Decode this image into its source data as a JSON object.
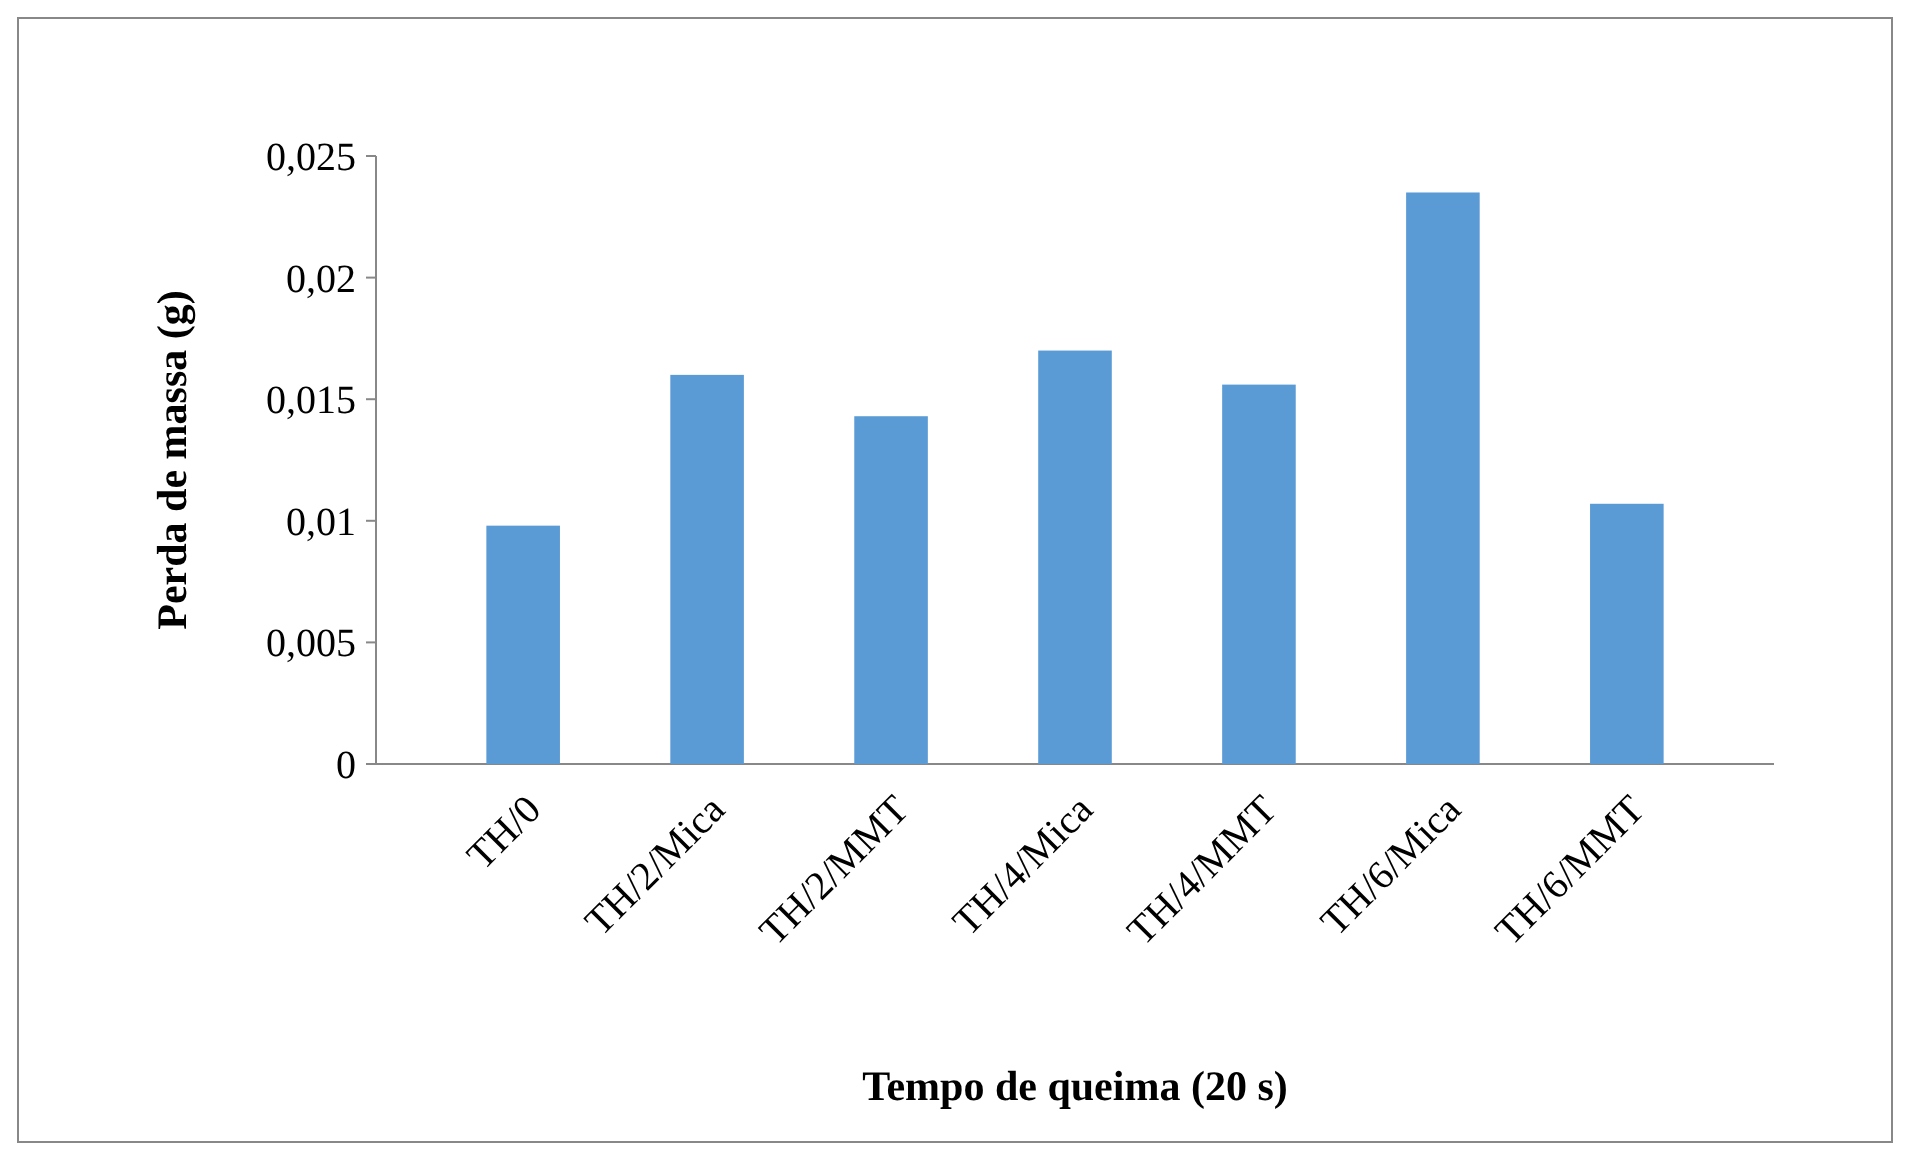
{
  "chart_data": {
    "type": "bar",
    "xlabel": "Tempo de queima (20 s)",
    "ylabel": "Perda de massa (g)",
    "categories": [
      "TH/0",
      "TH/2/Mica",
      "TH/2/MMT",
      "TH/4/Mica",
      "TH/4/MMT",
      "TH/6/Mica",
      "TH/6/MMT"
    ],
    "values": [
      0.0098,
      0.016,
      0.0143,
      0.017,
      0.0156,
      0.0235,
      0.0107
    ],
    "color": "#5b9bd5",
    "ylim": [
      0,
      0.025
    ],
    "yticks": [
      {
        "value": 0,
        "label": "0"
      },
      {
        "value": 0.005,
        "label": "0,005"
      },
      {
        "value": 0.01,
        "label": "0,01"
      },
      {
        "value": 0.015,
        "label": "0,015"
      },
      {
        "value": 0.02,
        "label": "0,02"
      },
      {
        "value": 0.025,
        "label": "0,025"
      }
    ],
    "grid": false
  }
}
